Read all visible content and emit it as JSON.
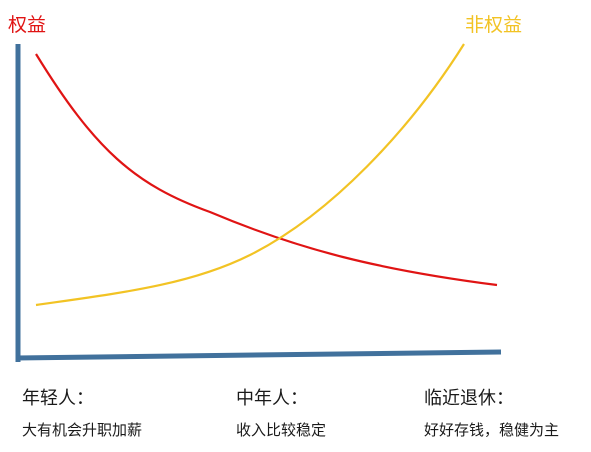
{
  "labels": {
    "equity": "权益",
    "non_equity": "非权益"
  },
  "stages": [
    {
      "title": "年轻人：",
      "desc": "大有机会升职加薪"
    },
    {
      "title": "中年人：",
      "desc": "收入比较稳定"
    },
    {
      "title": "临近退休：",
      "desc": "好好存钱，稳健为主"
    }
  ],
  "colors": {
    "equity_line": "#e01414",
    "non_equity_line": "#f2c324",
    "axis": "#41719c"
  }
}
